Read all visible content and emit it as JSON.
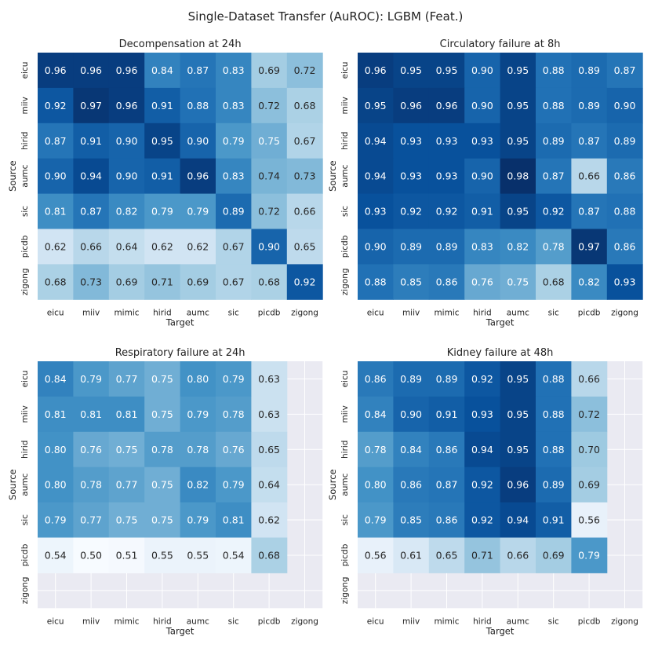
{
  "title": "Single-Dataset Transfer (AuROC): LGBM (Feat.)",
  "chart_data": [
    {
      "type": "heatmap",
      "title": "Decompensation at 24h",
      "xlabel": "Target",
      "ylabel": "Source",
      "x": [
        "eicu",
        "miiv",
        "mimic",
        "hirid",
        "aumc",
        "sic",
        "picdb",
        "zigong"
      ],
      "y": [
        "eicu",
        "miiv",
        "hirid",
        "aumc",
        "sic",
        "picdb",
        "zigong"
      ],
      "values": [
        [
          0.96,
          0.96,
          0.96,
          0.84,
          0.87,
          0.83,
          0.69,
          0.72
        ],
        [
          0.92,
          0.97,
          0.96,
          0.91,
          0.88,
          0.83,
          0.72,
          0.68
        ],
        [
          0.87,
          0.91,
          0.9,
          0.95,
          0.9,
          0.79,
          0.75,
          0.67
        ],
        [
          0.9,
          0.94,
          0.9,
          0.91,
          0.96,
          0.83,
          0.74,
          0.73
        ],
        [
          0.81,
          0.87,
          0.82,
          0.79,
          0.79,
          0.89,
          0.72,
          0.66
        ],
        [
          0.62,
          0.66,
          0.64,
          0.62,
          0.62,
          0.67,
          0.9,
          0.65
        ],
        [
          0.68,
          0.73,
          0.69,
          0.71,
          0.69,
          0.67,
          0.68,
          0.92
        ]
      ]
    },
    {
      "type": "heatmap",
      "title": "Circulatory failure at 8h",
      "xlabel": "Target",
      "ylabel": "Source",
      "x": [
        "eicu",
        "miiv",
        "mimic",
        "hirid",
        "aumc",
        "sic",
        "picdb",
        "zigong"
      ],
      "y": [
        "eicu",
        "miiv",
        "hirid",
        "aumc",
        "sic",
        "picdb",
        "zigong"
      ],
      "values": [
        [
          0.96,
          0.95,
          0.95,
          0.9,
          0.95,
          0.88,
          0.89,
          0.87
        ],
        [
          0.95,
          0.96,
          0.96,
          0.9,
          0.95,
          0.88,
          0.89,
          0.9
        ],
        [
          0.94,
          0.93,
          0.93,
          0.93,
          0.95,
          0.89,
          0.87,
          0.89
        ],
        [
          0.94,
          0.93,
          0.93,
          0.9,
          0.98,
          0.87,
          0.66,
          0.86
        ],
        [
          0.93,
          0.92,
          0.92,
          0.91,
          0.95,
          0.92,
          0.87,
          0.88
        ],
        [
          0.9,
          0.89,
          0.89,
          0.83,
          0.82,
          0.78,
          0.97,
          0.86
        ],
        [
          0.88,
          0.85,
          0.86,
          0.76,
          0.75,
          0.68,
          0.82,
          0.93
        ]
      ]
    },
    {
      "type": "heatmap",
      "title": "Respiratory failure at 24h",
      "xlabel": "Target",
      "ylabel": "Source",
      "x": [
        "eicu",
        "miiv",
        "mimic",
        "hirid",
        "aumc",
        "sic",
        "picdb",
        "zigong"
      ],
      "y": [
        "eicu",
        "miiv",
        "hirid",
        "aumc",
        "sic",
        "picdb",
        "zigong"
      ],
      "values": [
        [
          0.84,
          0.79,
          0.77,
          0.75,
          0.8,
          0.79,
          0.63,
          null
        ],
        [
          0.81,
          0.81,
          0.81,
          0.75,
          0.79,
          0.78,
          0.63,
          null
        ],
        [
          0.8,
          0.76,
          0.75,
          0.78,
          0.78,
          0.76,
          0.65,
          null
        ],
        [
          0.8,
          0.78,
          0.77,
          0.75,
          0.82,
          0.79,
          0.64,
          null
        ],
        [
          0.79,
          0.77,
          0.75,
          0.75,
          0.79,
          0.81,
          0.62,
          null
        ],
        [
          0.54,
          0.5,
          0.51,
          0.55,
          0.55,
          0.54,
          0.68,
          null
        ],
        [
          null,
          null,
          null,
          null,
          null,
          null,
          null,
          null
        ]
      ]
    },
    {
      "type": "heatmap",
      "title": "Kidney failure at 48h",
      "xlabel": "Target",
      "ylabel": "Source",
      "x": [
        "eicu",
        "miiv",
        "mimic",
        "hirid",
        "aumc",
        "sic",
        "picdb",
        "zigong"
      ],
      "y": [
        "eicu",
        "miiv",
        "hirid",
        "aumc",
        "sic",
        "picdb",
        "zigong"
      ],
      "values": [
        [
          0.86,
          0.89,
          0.89,
          0.92,
          0.95,
          0.88,
          0.66,
          null
        ],
        [
          0.84,
          0.9,
          0.91,
          0.93,
          0.95,
          0.88,
          0.72,
          null
        ],
        [
          0.78,
          0.84,
          0.86,
          0.94,
          0.95,
          0.88,
          0.7,
          null
        ],
        [
          0.8,
          0.86,
          0.87,
          0.92,
          0.96,
          0.89,
          0.69,
          null
        ],
        [
          0.79,
          0.85,
          0.86,
          0.92,
          0.94,
          0.91,
          0.56,
          null
        ],
        [
          0.56,
          0.61,
          0.65,
          0.71,
          0.66,
          0.69,
          0.79,
          null
        ],
        [
          null,
          null,
          null,
          null,
          null,
          null,
          null,
          null
        ]
      ]
    }
  ],
  "colors": {
    "background": "#eaeaf2",
    "gridline": "#ffffff",
    "low": "#f7fbff",
    "high": "#08306b"
  }
}
